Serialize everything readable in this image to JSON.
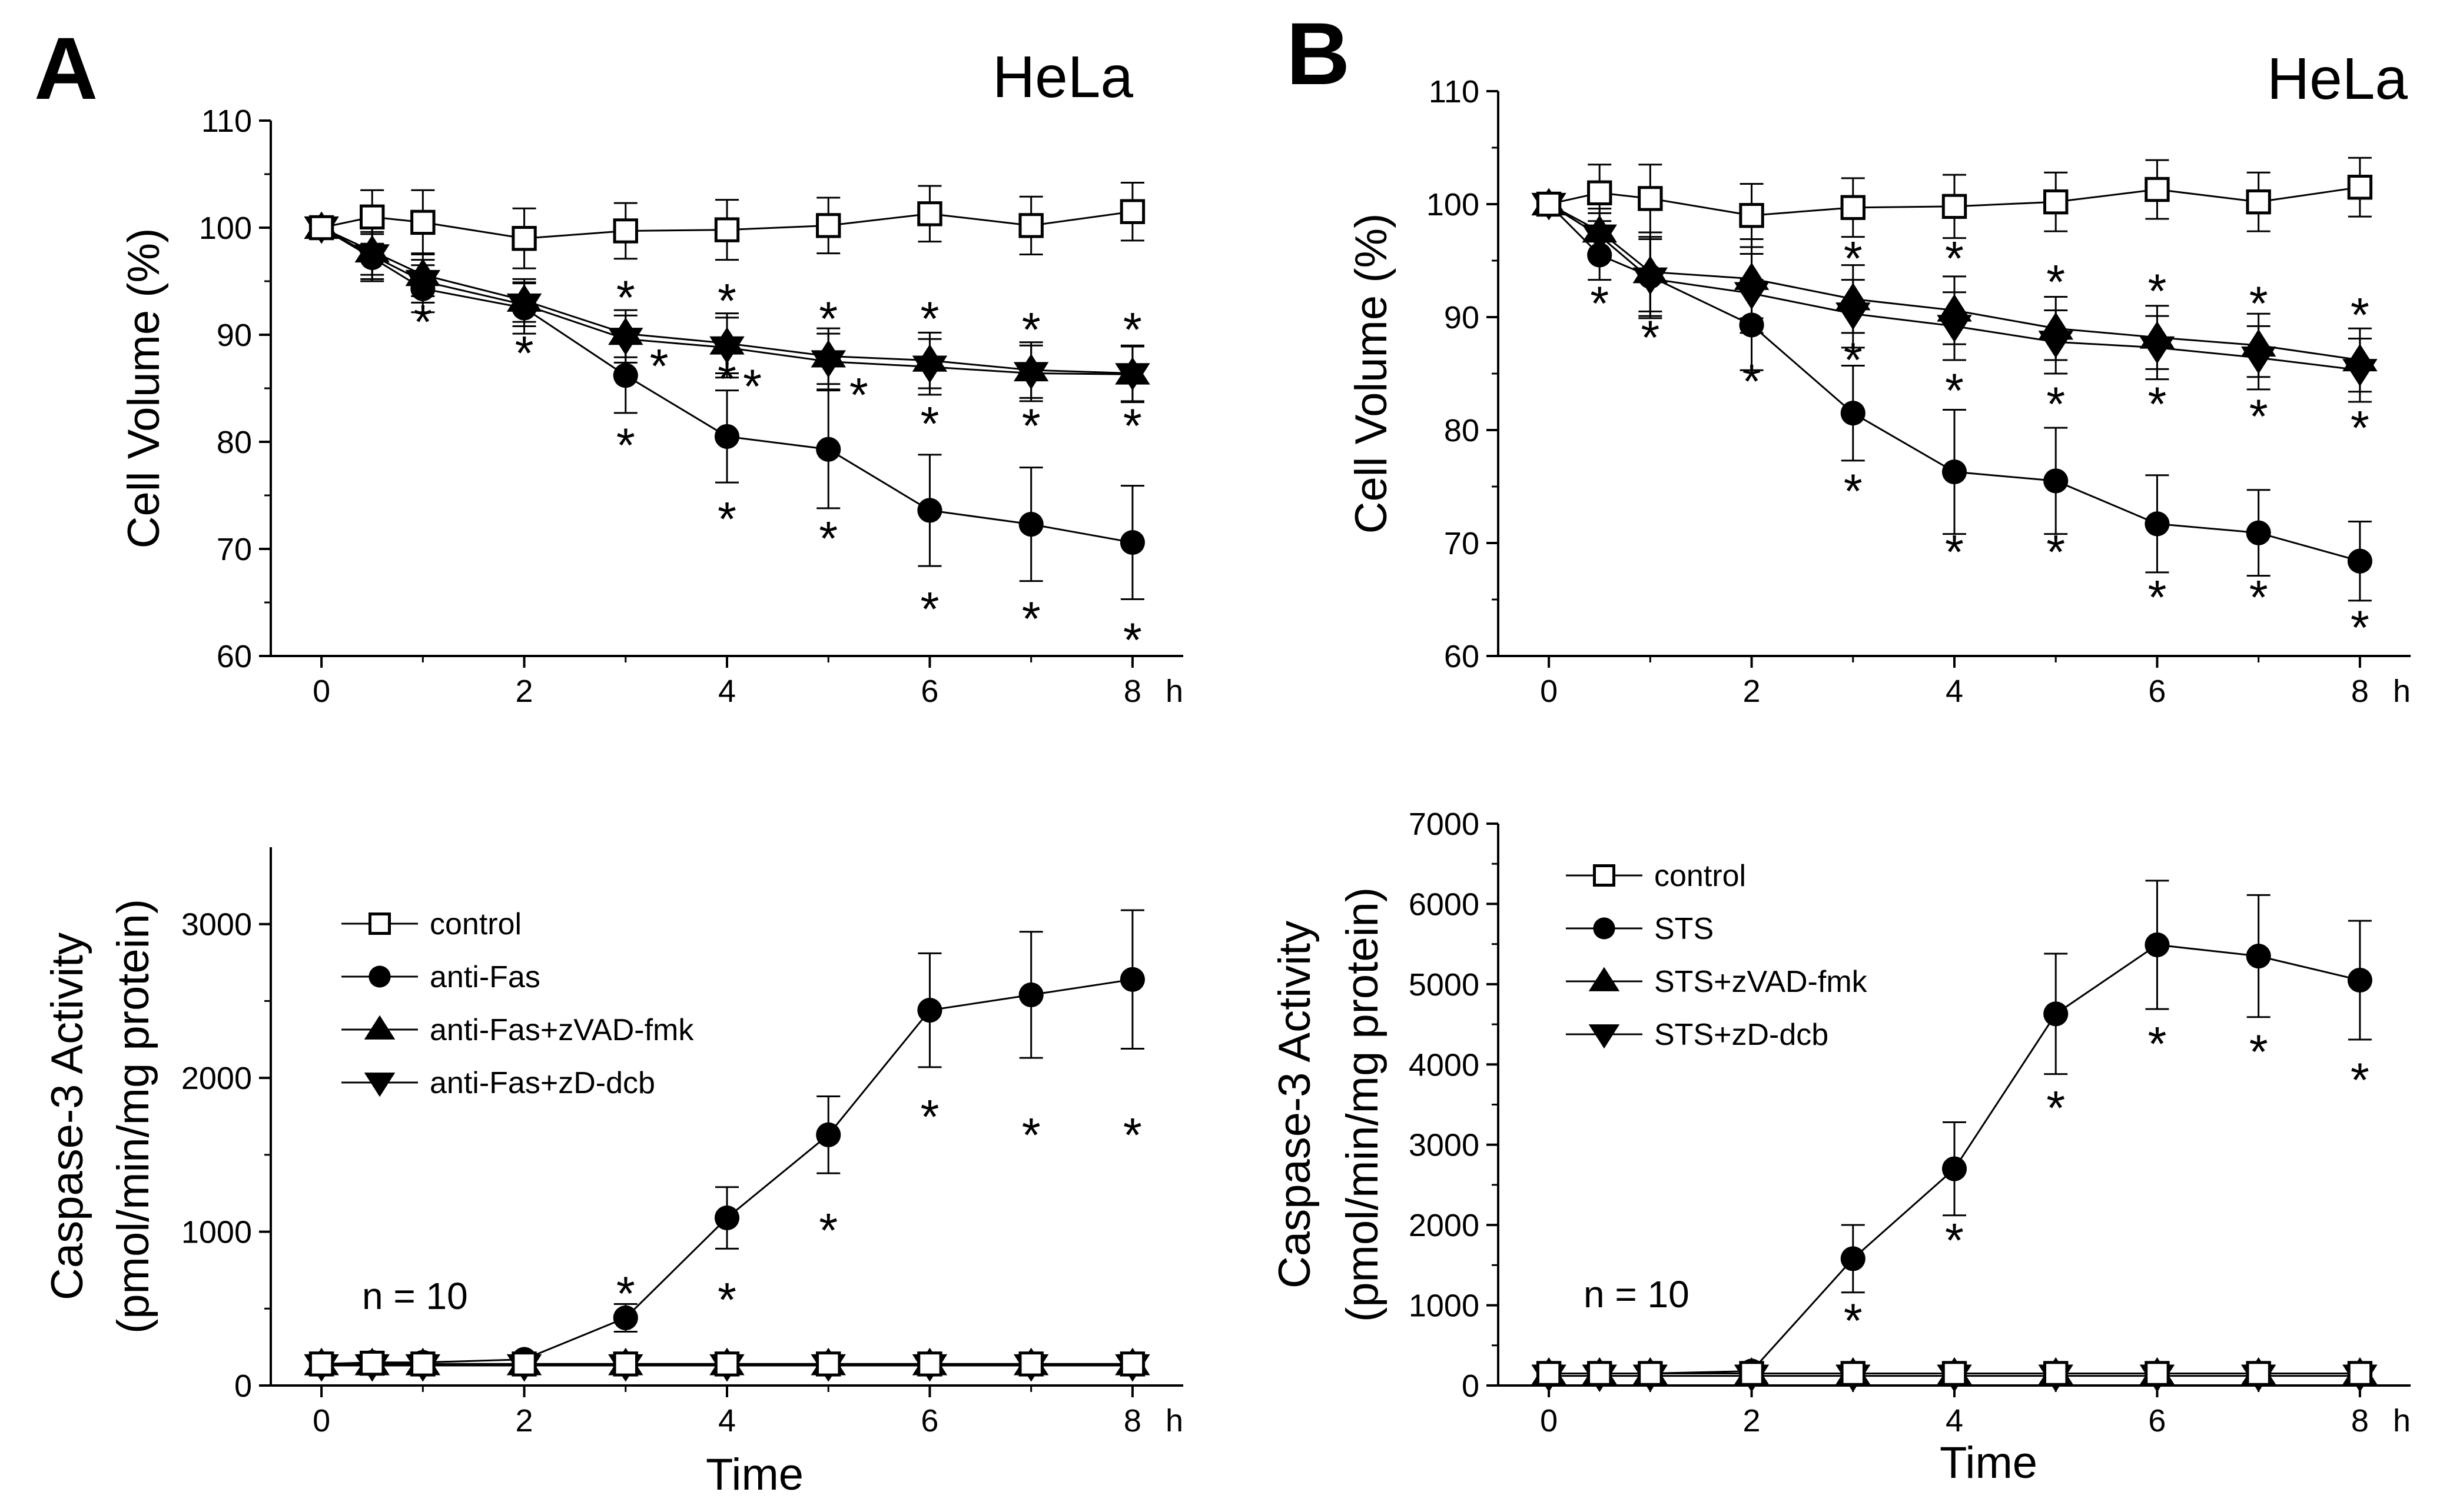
{
  "figure": {
    "panels": [
      {
        "letter": "A",
        "cell_line": "HeLa",
        "n_label": "n = 10",
        "xunit": "h",
        "xlabel": "Time"
      },
      {
        "letter": "B",
        "cell_line": "HeLa",
        "n_label": "n = 10",
        "xunit": "h",
        "xlabel": "Time"
      }
    ]
  },
  "chart_data": [
    {
      "id": "A-volume",
      "type": "line",
      "title": "HeLa",
      "xlabel": "",
      "x_unit": "h",
      "ylabel": "Cell Volume (%)",
      "xlim": [
        -0.5,
        8.5
      ],
      "ylim": [
        60,
        110
      ],
      "xticks": [
        0,
        2,
        4,
        6,
        8
      ],
      "yticks": [
        60,
        70,
        80,
        90,
        100,
        110
      ],
      "x": [
        0,
        0.5,
        1,
        2,
        3,
        4,
        5,
        6,
        7,
        8
      ],
      "series": [
        {
          "name": "control",
          "marker": "open-square",
          "values": [
            100,
            101,
            100.5,
            99,
            99.7,
            99.8,
            100.2,
            101.3,
            100.2,
            101.5
          ],
          "err": [
            0,
            2.5,
            3,
            2.8,
            2.6,
            2.8,
            2.6,
            2.6,
            2.7,
            2.7
          ]
        },
        {
          "name": "anti-Fas",
          "marker": "filled-circle",
          "values": [
            100,
            97.2,
            94.3,
            92.5,
            86.2,
            80.5,
            79.3,
            73.6,
            72.3,
            70.6
          ],
          "err": [
            0,
            2.2,
            2.2,
            2.4,
            3.5,
            4.3,
            5.5,
            5.2,
            5.3,
            5.3
          ]
        },
        {
          "name": "anti-Fas+zVAD-fmk",
          "marker": "filled-triangle-up",
          "values": [
            100,
            97.8,
            95.6,
            93.2,
            90.1,
            89.2,
            88,
            87.6,
            86.7,
            86.4
          ],
          "err": [
            0,
            2.2,
            2,
            2,
            2.2,
            2.8,
            2.6,
            2.6,
            2.6,
            2.6
          ]
        },
        {
          "name": "anti-Fas+zD-dcb",
          "marker": "filled-triangle-down",
          "values": [
            100,
            97.4,
            95,
            92.8,
            89.6,
            88.8,
            87.5,
            87,
            86.4,
            86.3
          ],
          "err": [
            0,
            2.2,
            2,
            2,
            2.2,
            2.8,
            2.6,
            2.6,
            2.6,
            2.6
          ]
        }
      ],
      "significance_marks": [
        {
          "x": 1,
          "y": 91.5
        },
        {
          "x": 2,
          "y": 88.6
        },
        {
          "x": 3,
          "y": 93.8
        },
        {
          "x": 3,
          "y": 80
        },
        {
          "x": 3.33,
          "y": 87.4
        },
        {
          "x": 4,
          "y": 93.5
        },
        {
          "x": 4,
          "y": 86.2
        },
        {
          "x": 4,
          "y": 73.1
        },
        {
          "x": 4.25,
          "y": 85.5
        },
        {
          "x": 5,
          "y": 91.8
        },
        {
          "x": 5,
          "y": 71.3
        },
        {
          "x": 5.3,
          "y": 84.7
        },
        {
          "x": 6,
          "y": 91.8
        },
        {
          "x": 6,
          "y": 82
        },
        {
          "x": 6,
          "y": 64.7
        },
        {
          "x": 7,
          "y": 90.8
        },
        {
          "x": 7,
          "y": 81.8
        },
        {
          "x": 7,
          "y": 63.8
        },
        {
          "x": 8,
          "y": 90.8
        },
        {
          "x": 8,
          "y": 81.8
        },
        {
          "x": 8,
          "y": 61.8
        }
      ]
    },
    {
      "id": "A-caspase",
      "type": "line",
      "title": "",
      "xlabel": "Time",
      "x_unit": "h",
      "ylabel": "Caspase-3 Activity",
      "ylabel_line2": "(pmol/min/mg protein)",
      "xlim": [
        -0.5,
        8.5
      ],
      "ylim": [
        0,
        3500
      ],
      "xticks": [
        0,
        2,
        4,
        6,
        8
      ],
      "yticks": [
        0,
        1000,
        2000,
        3000
      ],
      "legend_position": "center",
      "x": [
        0,
        0.5,
        1,
        2,
        3,
        4,
        5,
        6,
        7,
        8
      ],
      "series": [
        {
          "name": "control",
          "marker": "open-square",
          "values": [
            140,
            145,
            140,
            140,
            140,
            140,
            140,
            140,
            140,
            140
          ],
          "err": [
            0,
            0,
            0,
            0,
            0,
            0,
            0,
            0,
            0,
            0
          ]
        },
        {
          "name": "anti-Fas",
          "marker": "filled-circle",
          "values": [
            140,
            150,
            150,
            170,
            440,
            1090,
            1630,
            2440,
            2540,
            2640
          ],
          "err": [
            0,
            30,
            30,
            40,
            90,
            200,
            250,
            370,
            410,
            450
          ]
        },
        {
          "name": "anti-Fas+zVAD-fmk",
          "marker": "filled-triangle-up",
          "values": [
            140,
            140,
            140,
            140,
            140,
            140,
            140,
            140,
            140,
            140
          ],
          "err": [
            0,
            0,
            0,
            0,
            0,
            0,
            0,
            0,
            0,
            0
          ]
        },
        {
          "name": "anti-Fas+zD-dcb",
          "marker": "filled-triangle-down",
          "values": [
            130,
            130,
            130,
            130,
            130,
            130,
            130,
            130,
            130,
            130
          ],
          "err": [
            0,
            0,
            0,
            0,
            0,
            0,
            0,
            0,
            0,
            0
          ]
        }
      ],
      "significance_marks": [
        {
          "x": 3,
          "y": 620
        },
        {
          "x": 4,
          "y": 580
        },
        {
          "x": 5,
          "y": 1030
        },
        {
          "x": 6,
          "y": 1770
        },
        {
          "x": 7,
          "y": 1650
        },
        {
          "x": 8,
          "y": 1650
        }
      ]
    },
    {
      "id": "B-volume",
      "type": "line",
      "title": "HeLa",
      "xlabel": "",
      "x_unit": "h",
      "ylabel": "Cell Volume (%)",
      "xlim": [
        -0.5,
        8.5
      ],
      "ylim": [
        60,
        110
      ],
      "xticks": [
        0,
        2,
        4,
        6,
        8
      ],
      "yticks": [
        60,
        70,
        80,
        90,
        100,
        110
      ],
      "x": [
        0,
        0.5,
        1,
        2,
        3,
        4,
        5,
        6,
        7,
        8
      ],
      "series": [
        {
          "name": "control",
          "marker": "open-square",
          "values": [
            100,
            101,
            100.5,
            99,
            99.7,
            99.8,
            100.2,
            101.3,
            100.2,
            101.5
          ],
          "err": [
            0,
            2.5,
            3,
            2.8,
            2.6,
            2.8,
            2.6,
            2.6,
            2.6,
            2.6
          ]
        },
        {
          "name": "STS",
          "marker": "filled-circle",
          "values": [
            100,
            95.5,
            93.6,
            89.3,
            81.5,
            76.3,
            75.5,
            71.7,
            70.9,
            68.4
          ],
          "err": [
            0,
            2.2,
            3.5,
            4,
            4.2,
            5.5,
            4.7,
            4.3,
            3.8,
            3.5
          ]
        },
        {
          "name": "STS+zVAD-fmk",
          "marker": "filled-triangle-up",
          "values": [
            100,
            97.6,
            94,
            93.4,
            91.6,
            90.6,
            89,
            88.2,
            87.5,
            86.2
          ],
          "err": [
            0,
            2,
            3.5,
            3.5,
            3,
            3,
            2.8,
            2.8,
            2.8,
            2.8
          ]
        },
        {
          "name": "STS+zD-dcb",
          "marker": "filled-triangle-down",
          "values": [
            100,
            97.2,
            93.4,
            92.1,
            90.3,
            89.2,
            87.8,
            87.3,
            86.4,
            85.3
          ],
          "err": [
            0,
            2,
            3.5,
            3.5,
            3,
            3,
            2.8,
            2.8,
            2.8,
            2.8
          ]
        }
      ],
      "significance_marks": [
        {
          "x": 0.5,
          "y": 91.5
        },
        {
          "x": 1,
          "y": 88.5
        },
        {
          "x": 2,
          "y": 84.6
        },
        {
          "x": 3,
          "y": 95.5
        },
        {
          "x": 3,
          "y": 86.5
        },
        {
          "x": 3,
          "y": 74.9
        },
        {
          "x": 4,
          "y": 95.5
        },
        {
          "x": 4,
          "y": 83.8
        },
        {
          "x": 4,
          "y": 69.5
        },
        {
          "x": 5,
          "y": 93.4
        },
        {
          "x": 5,
          "y": 82.6
        },
        {
          "x": 5,
          "y": 69.5
        },
        {
          "x": 6,
          "y": 92.6
        },
        {
          "x": 6,
          "y": 82.6
        },
        {
          "x": 6,
          "y": 65.5
        },
        {
          "x": 7,
          "y": 91.5
        },
        {
          "x": 7,
          "y": 81.5
        },
        {
          "x": 7,
          "y": 65.5
        },
        {
          "x": 8,
          "y": 90.5
        },
        {
          "x": 8,
          "y": 80.5
        },
        {
          "x": 8,
          "y": 62.8
        }
      ]
    },
    {
      "id": "B-caspase",
      "type": "line",
      "title": "",
      "xlabel": "Time",
      "x_unit": "h",
      "ylabel": "Caspase-3 Activity",
      "ylabel_line2": "(pmol/min/mg protein)",
      "xlim": [
        -0.5,
        8.5
      ],
      "ylim": [
        0,
        7000
      ],
      "xticks": [
        0,
        2,
        4,
        6,
        8
      ],
      "yticks": [
        0,
        1000,
        2000,
        3000,
        4000,
        5000,
        6000,
        7000
      ],
      "legend_position": "top-left",
      "x": [
        0,
        0.5,
        1,
        2,
        3,
        4,
        5,
        6,
        7,
        8
      ],
      "series": [
        {
          "name": "control",
          "marker": "open-square",
          "values": [
            150,
            150,
            150,
            150,
            150,
            150,
            150,
            150,
            150,
            150
          ],
          "err": [
            0,
            0,
            0,
            0,
            0,
            0,
            0,
            0,
            0,
            0
          ]
        },
        {
          "name": "STS",
          "marker": "filled-circle",
          "values": [
            150,
            150,
            150,
            180,
            1580,
            2700,
            4630,
            5490,
            5350,
            5050
          ],
          "err": [
            0,
            40,
            40,
            50,
            420,
            580,
            750,
            800,
            760,
            740
          ]
        },
        {
          "name": "STS+zVAD-fmk",
          "marker": "filled-triangle-up",
          "values": [
            150,
            150,
            150,
            150,
            150,
            150,
            150,
            150,
            150,
            150
          ],
          "err": [
            0,
            0,
            0,
            0,
            0,
            0,
            0,
            0,
            0,
            0
          ]
        },
        {
          "name": "STS+zD-dcb",
          "marker": "filled-triangle-down",
          "values": [
            120,
            120,
            120,
            120,
            120,
            120,
            120,
            120,
            120,
            120
          ],
          "err": [
            0,
            0,
            0,
            0,
            0,
            0,
            0,
            0,
            0,
            0
          ]
        }
      ],
      "significance_marks": [
        {
          "x": 3,
          "y": 850
        },
        {
          "x": 4,
          "y": 1850
        },
        {
          "x": 5,
          "y": 3500
        },
        {
          "x": 6,
          "y": 4300
        },
        {
          "x": 7,
          "y": 4200
        },
        {
          "x": 8,
          "y": 3850
        }
      ]
    }
  ]
}
